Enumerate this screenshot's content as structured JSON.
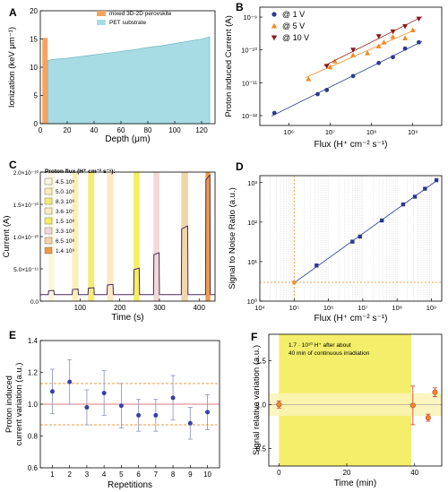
{
  "chart_data": [
    {
      "panel": "A",
      "type": "area",
      "xlabel": "Depth (μm)",
      "ylabel": "Ionization (keV μm⁻¹)",
      "xlim": [
        0,
        130
      ],
      "ylim": [
        0,
        20
      ],
      "xticks": [
        0,
        20,
        40,
        60,
        80,
        100,
        120
      ],
      "yticks": [
        0,
        5,
        10,
        15,
        20
      ],
      "legend": "top-right",
      "series": [
        {
          "name": "mixed 3D-2D perovskite",
          "color": "#f4a460",
          "x": [
            1.5,
            5.5
          ],
          "y": [
            14.9,
            15.2
          ]
        },
        {
          "name": "PET substrate",
          "color": "#a8dce4",
          "x": [
            5.5,
            10,
            20,
            30,
            40,
            50,
            60,
            70,
            80,
            90,
            100,
            110,
            120,
            126
          ],
          "y": [
            11.2,
            11.4,
            11.6,
            11.9,
            12.2,
            12.5,
            12.8,
            13.1,
            13.5,
            13.8,
            14.2,
            14.6,
            15.0,
            15.4
          ]
        }
      ]
    },
    {
      "panel": "B",
      "type": "scatter",
      "xlabel": "Flux (H⁺ cm⁻² s⁻¹)",
      "ylabel": "Proton induced Current (A)",
      "xscale": "log",
      "yscale": "log",
      "xlim": [
        200000.0,
        5000000000.0
      ],
      "ylim": [
        5e-13,
        2e-09
      ],
      "xticks_label": [
        "10⁶",
        "10⁷",
        "10⁸",
        "10⁹",
        "10¹⁰"
      ],
      "yticks_label": [
        "10⁻¹²",
        "10⁻¹¹",
        "10⁻¹⁰",
        "10⁻⁹"
      ],
      "legend": "top-left",
      "series": [
        {
          "name": "@ 1 V",
          "color": "#2b3a8f",
          "marker": "circle",
          "x": [
            450000.0,
            5000000.0,
            8300000.0,
            36000000.0,
            150000000.0,
            330000000.0,
            650000000.0,
            1400000000.0
          ],
          "y": [
            1.2e-12,
            4.5e-12,
            6e-12,
            1.6e-11,
            4e-11,
            6e-11,
            1.1e-10,
            1.7e-10
          ]
        },
        {
          "name": "@ 5 V",
          "color": "#f08a24",
          "marker": "triangle-up",
          "x": [
            3000000.0,
            10000000.0,
            13000000.0,
            36000000.0,
            80000000.0,
            150000000.0,
            200000000.0,
            330000000.0,
            650000000.0,
            1000000000.0
          ],
          "y": [
            1.3e-11,
            3e-11,
            4.5e-11,
            7e-11,
            8e-11,
            1.3e-10,
            1.7e-10,
            2.5e-10,
            2.3e-10,
            4e-10
          ]
        },
        {
          "name": "@ 10 V",
          "color": "#8b1a1a",
          "marker": "triangle-down",
          "x": [
            8300000.0,
            36000000.0,
            150000000.0,
            330000000.0,
            650000000.0,
            1400000000.0
          ],
          "y": [
            3.2e-11,
            1e-10,
            2.6e-10,
            3.6e-10,
            5.2e-10,
            8.8e-10
          ]
        }
      ]
    },
    {
      "panel": "C",
      "type": "line",
      "xlabel": "Time (s)",
      "ylabel": "Current (A)",
      "xlim": [
        0,
        440
      ],
      "ylim": [
        0,
        2e-10
      ],
      "xticks": [
        100,
        200,
        300,
        400
      ],
      "yticks_label": [
        "0.0",
        "5.0×10⁻¹¹",
        "1.0×10⁻¹⁰",
        "1.5×10⁻¹⁰",
        "2.0×10⁻¹⁰"
      ],
      "legend_title": "Proton flux (H⁺ cm⁻² s⁻¹):",
      "legend": "top-left",
      "flux_labels": [
        "4.5·10⁵",
        "5.0·10⁶",
        "8.3·10⁶",
        "3.6·10⁷",
        "1.5·10⁸",
        "3.3·10⁸",
        "6.5·10⁸",
        "1.4·10⁹"
      ],
      "flux_colors": [
        "#fbf6dd",
        "#f8f0b8",
        "#f4ec7a",
        "#fbe9c4",
        "#f5ee62",
        "#f2d8d8",
        "#f0d6a8",
        "#ee9a4a"
      ],
      "pulses": [
        {
          "start": 20,
          "end": 35,
          "value": 1.6e-11
        },
        {
          "start": 80,
          "end": 96,
          "value": 1.8e-11
        },
        {
          "start": 120,
          "end": 136,
          "value": 2e-11
        },
        {
          "start": 168,
          "end": 184,
          "value": 2.5e-11
        },
        {
          "start": 235,
          "end": 250,
          "value": 4.9e-11
        },
        {
          "start": 285,
          "end": 300,
          "value": 7.2e-11
        },
        {
          "start": 355,
          "end": 372,
          "value": 1.12e-10
        },
        {
          "start": 416,
          "end": 428,
          "value": 1.88e-10
        }
      ],
      "baseline": 1e-11
    },
    {
      "panel": "D",
      "type": "scatter",
      "xlabel": "Flux (H⁺ cm⁻² s⁻¹)",
      "ylabel": "Signal to Noise Ratio (a.u.)",
      "xscale": "log",
      "yscale": "log",
      "xlim": [
        10000.0,
        2000000000.0
      ],
      "ylim": [
        1,
        1500.0
      ],
      "xticks_label": [
        "10⁴",
        "10⁵",
        "10⁶",
        "10⁷",
        "10⁸",
        "10⁹"
      ],
      "yticks_label": [
        "10⁰",
        "10¹",
        "10²",
        "10³"
      ],
      "threshold_snr": 3,
      "threshold_flux": 100000.0,
      "series": [
        {
          "name": "SNR",
          "color": "#2b3a8f",
          "x": [
            450000.0,
            5000000.0,
            8300000.0,
            36000000.0,
            150000000.0,
            330000000.0,
            650000000.0,
            1400000000.0
          ],
          "y": [
            8,
            32,
            43,
            110,
            280,
            440,
            700,
            1150
          ]
        }
      ]
    },
    {
      "panel": "E",
      "type": "scatter",
      "xlabel": "Repetitions",
      "ylabel": "Proton induced current variation (a.u.)",
      "xlim": [
        0.3,
        10.7
      ],
      "ylim": [
        0.6,
        1.4
      ],
      "xticks": [
        1,
        2,
        3,
        4,
        5,
        6,
        7,
        8,
        9,
        10
      ],
      "yticks": [
        "0.6",
        "0.8",
        "1.0",
        "1.2",
        "1.4"
      ],
      "band": [
        0.87,
        1.13
      ],
      "x": [
        1,
        2,
        3,
        4,
        5,
        6,
        7,
        8,
        9,
        10
      ],
      "y": [
        1.08,
        1.14,
        0.98,
        1.07,
        0.99,
        0.93,
        0.93,
        1.04,
        0.88,
        0.95
      ],
      "err": [
        0.14,
        0.14,
        0.11,
        0.14,
        0.14,
        0.1,
        0.1,
        0.14,
        0.1,
        0.11
      ]
    },
    {
      "panel": "F",
      "type": "scatter",
      "xlabel": "Time (min)",
      "ylabel": "Signal relative variation (a.u.)",
      "xlim": [
        -3,
        48
      ],
      "ylim": [
        0.3,
        1.8
      ],
      "xticks": [
        0,
        20,
        40
      ],
      "yticks": [
        "0.5",
        "1.0",
        "1.5"
      ],
      "shade": [
        0,
        39
      ],
      "band": [
        0.87,
        1.13
      ],
      "annotation": "1.7 · 10¹⁰ H⁺ after about 40 min of continuous irradiation",
      "x": [
        0,
        39.5,
        44,
        46
      ],
      "y": [
        1.0,
        0.99,
        0.85,
        1.14
      ],
      "err": [
        0.04,
        0.22,
        0.04,
        0.05
      ]
    }
  ]
}
